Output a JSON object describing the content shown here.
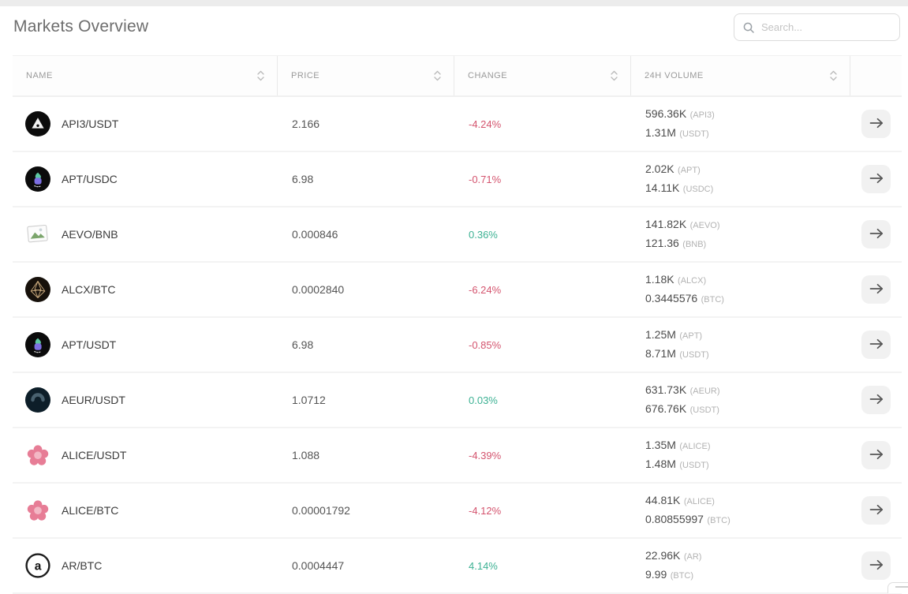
{
  "page": {
    "title": "Markets Overview"
  },
  "search": {
    "placeholder": "Search..."
  },
  "colors": {
    "negative": "#d4546e",
    "positive": "#3cb193"
  },
  "table": {
    "columns": [
      {
        "label": "NAME",
        "sortable": true
      },
      {
        "label": "PRICE",
        "sortable": true
      },
      {
        "label": "CHANGE",
        "sortable": true
      },
      {
        "label": "24H VOLUME",
        "sortable": true
      },
      {
        "label": "",
        "sortable": false
      }
    ],
    "rows": [
      {
        "pair": "API3/USDT",
        "icon": "api3",
        "price": "2.166",
        "change": "-4.24%",
        "volume_base": "596.36K",
        "volume_base_unit": "(API3)",
        "volume_quote": "1.31M",
        "volume_quote_unit": "(USDT)"
      },
      {
        "pair": "APT/USDC",
        "icon": "apt",
        "price": "6.98",
        "change": "-0.71%",
        "volume_base": "2.02K",
        "volume_base_unit": "(APT)",
        "volume_quote": "14.11K",
        "volume_quote_unit": "(USDC)"
      },
      {
        "pair": "AEVO/BNB",
        "icon": "broken-image",
        "price": "0.000846",
        "change": "0.36%",
        "volume_base": "141.82K",
        "volume_base_unit": "(AEVO)",
        "volume_quote": "121.36",
        "volume_quote_unit": "(BNB)"
      },
      {
        "pair": "ALCX/BTC",
        "icon": "alcx",
        "price": "0.0002840",
        "change": "-6.24%",
        "volume_base": "1.18K",
        "volume_base_unit": "(ALCX)",
        "volume_quote": "0.3445576",
        "volume_quote_unit": "(BTC)"
      },
      {
        "pair": "APT/USDT",
        "icon": "apt",
        "price": "6.98",
        "change": "-0.85%",
        "volume_base": "1.25M",
        "volume_base_unit": "(APT)",
        "volume_quote": "8.71M",
        "volume_quote_unit": "(USDT)"
      },
      {
        "pair": "AEUR/USDT",
        "icon": "aeur",
        "price": "1.0712",
        "change": "0.03%",
        "volume_base": "631.73K",
        "volume_base_unit": "(AEUR)",
        "volume_quote": "676.76K",
        "volume_quote_unit": "(USDT)"
      },
      {
        "pair": "ALICE/USDT",
        "icon": "alice",
        "price": "1.088",
        "change": "-4.39%",
        "volume_base": "1.35M",
        "volume_base_unit": "(ALICE)",
        "volume_quote": "1.48M",
        "volume_quote_unit": "(USDT)"
      },
      {
        "pair": "ALICE/BTC",
        "icon": "alice",
        "price": "0.00001792",
        "change": "-4.12%",
        "volume_base": "44.81K",
        "volume_base_unit": "(ALICE)",
        "volume_quote": "0.80855997",
        "volume_quote_unit": "(BTC)"
      },
      {
        "pair": "AR/BTC",
        "icon": "ar",
        "price": "0.0004447",
        "change": "4.14%",
        "volume_base": "22.96K",
        "volume_base_unit": "(AR)",
        "volume_quote": "9.99",
        "volume_quote_unit": "(BTC)"
      }
    ]
  }
}
